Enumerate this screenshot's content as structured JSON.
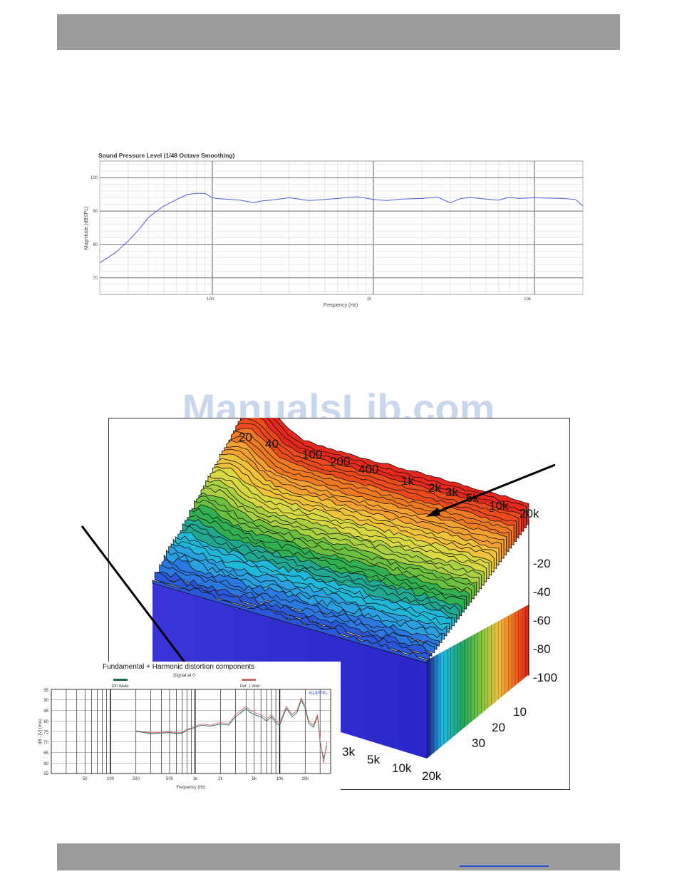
{
  "watermark": "ManualsLib.com",
  "chart_data": [
    {
      "type": "line",
      "title": "Sound Pressure Level (1/48 Octave Smoothing)",
      "xlabel": "Frequency (Hz)",
      "ylabel": "Magnitude (dBSPL)",
      "xscale": "log",
      "xlim": [
        20,
        20000
      ],
      "ylim": [
        65,
        105
      ],
      "x_ticks": [
        "100",
        "1k",
        "10k"
      ],
      "y_ticks": [
        "100",
        "90",
        "80",
        "70"
      ],
      "grid": true,
      "series": [
        {
          "color": "#4b5bd8",
          "x": [
            20,
            25,
            30,
            35,
            40,
            45,
            50,
            60,
            70,
            80,
            90,
            100,
            110,
            130,
            150,
            180,
            200,
            250,
            300,
            400,
            500,
            600,
            800,
            1000,
            1200,
            1500,
            2000,
            2500,
            3000,
            3500,
            4000,
            5000,
            6000,
            7000,
            8000,
            10000,
            12000,
            15000,
            18000,
            20000
          ],
          "y": [
            74.5,
            77.5,
            81,
            84.5,
            88,
            90,
            91.5,
            93.5,
            95,
            95.3,
            95.3,
            94,
            93.7,
            93.5,
            93.3,
            92.5,
            93,
            93.5,
            94,
            93.2,
            93.5,
            93.8,
            94.3,
            93.5,
            93.2,
            93.6,
            93.8,
            94.2,
            92.5,
            93.8,
            94.1,
            93.6,
            93.3,
            94.2,
            93.8,
            94.0,
            93.9,
            93.8,
            93.5,
            91.5
          ]
        }
      ]
    },
    {
      "type": "area",
      "subtype": "cumulative-spectral-decay-waterfall",
      "x_ticks": [
        "20",
        "40",
        "100",
        "200",
        "400",
        "1k",
        "2k",
        "3k",
        "5k",
        "10k",
        "20k"
      ],
      "z_ticks": [
        "-20",
        "-40",
        "-60",
        "-80",
        "-100"
      ],
      "depth_ticks": [
        "10",
        "20",
        "30"
      ],
      "front_x_ticks": [
        "3k",
        "5k",
        "10k",
        "20k"
      ]
    },
    {
      "type": "line",
      "title": "Fundamental + Harmonic distortion components",
      "subtitle": "Signal at 0",
      "xlabel": "Frequency (Hz)",
      "ylabel": "dB - [V] (rms)",
      "xscale": "log",
      "xlim": [
        20,
        40000
      ],
      "ylim": [
        55,
        95
      ],
      "brand": "KLIPPEL",
      "x_ticks": [
        "50",
        "100",
        "200",
        "500",
        "1k",
        "2k",
        "5k",
        "10k",
        "20k"
      ],
      "y_ticks": [
        "95",
        "90",
        "85",
        "80",
        "75",
        "70",
        "65",
        "60",
        "55"
      ],
      "legend": [
        "100 Watts",
        "Ref. 1 Watt"
      ],
      "series": [
        {
          "name": "100 Watts",
          "color": "#1d6b55",
          "x": [
            200,
            250,
            300,
            400,
            500,
            600,
            700,
            800,
            1000,
            1200,
            1500,
            2000,
            2500,
            3000,
            3500,
            4000,
            4500,
            5000,
            6000,
            7000,
            8000,
            9000,
            10000,
            12000,
            14000,
            16000,
            18000,
            20000,
            22000,
            25000,
            28000,
            30000,
            33000,
            36000
          ],
          "y": [
            75,
            74.5,
            74,
            74.2,
            74.5,
            74,
            74.2,
            75.5,
            77,
            78,
            77.5,
            78.5,
            78,
            82,
            84,
            86,
            84,
            83,
            82,
            80,
            82,
            79,
            78,
            86,
            82,
            84,
            90,
            86,
            79,
            77,
            82,
            70,
            62,
            68
          ]
        },
        {
          "name": "Ref. 1 Watt",
          "color": "#d06a6a",
          "x": [
            200,
            250,
            300,
            400,
            500,
            600,
            700,
            800,
            1000,
            1200,
            1500,
            2000,
            2500,
            3000,
            3500,
            4000,
            4500,
            5000,
            6000,
            7000,
            8000,
            9000,
            10000,
            12000,
            14000,
            16000,
            18000,
            20000,
            22000,
            25000,
            28000,
            30000,
            33000,
            36000
          ],
          "y": [
            75.3,
            74.8,
            74.4,
            74.6,
            74.9,
            74.4,
            74.6,
            76,
            77.6,
            78.6,
            78,
            79.2,
            78.8,
            83,
            85,
            87,
            85,
            84,
            83,
            81,
            83,
            80,
            79,
            87,
            83,
            85,
            91,
            87,
            80,
            78,
            83,
            71,
            60,
            70
          ]
        }
      ]
    }
  ]
}
